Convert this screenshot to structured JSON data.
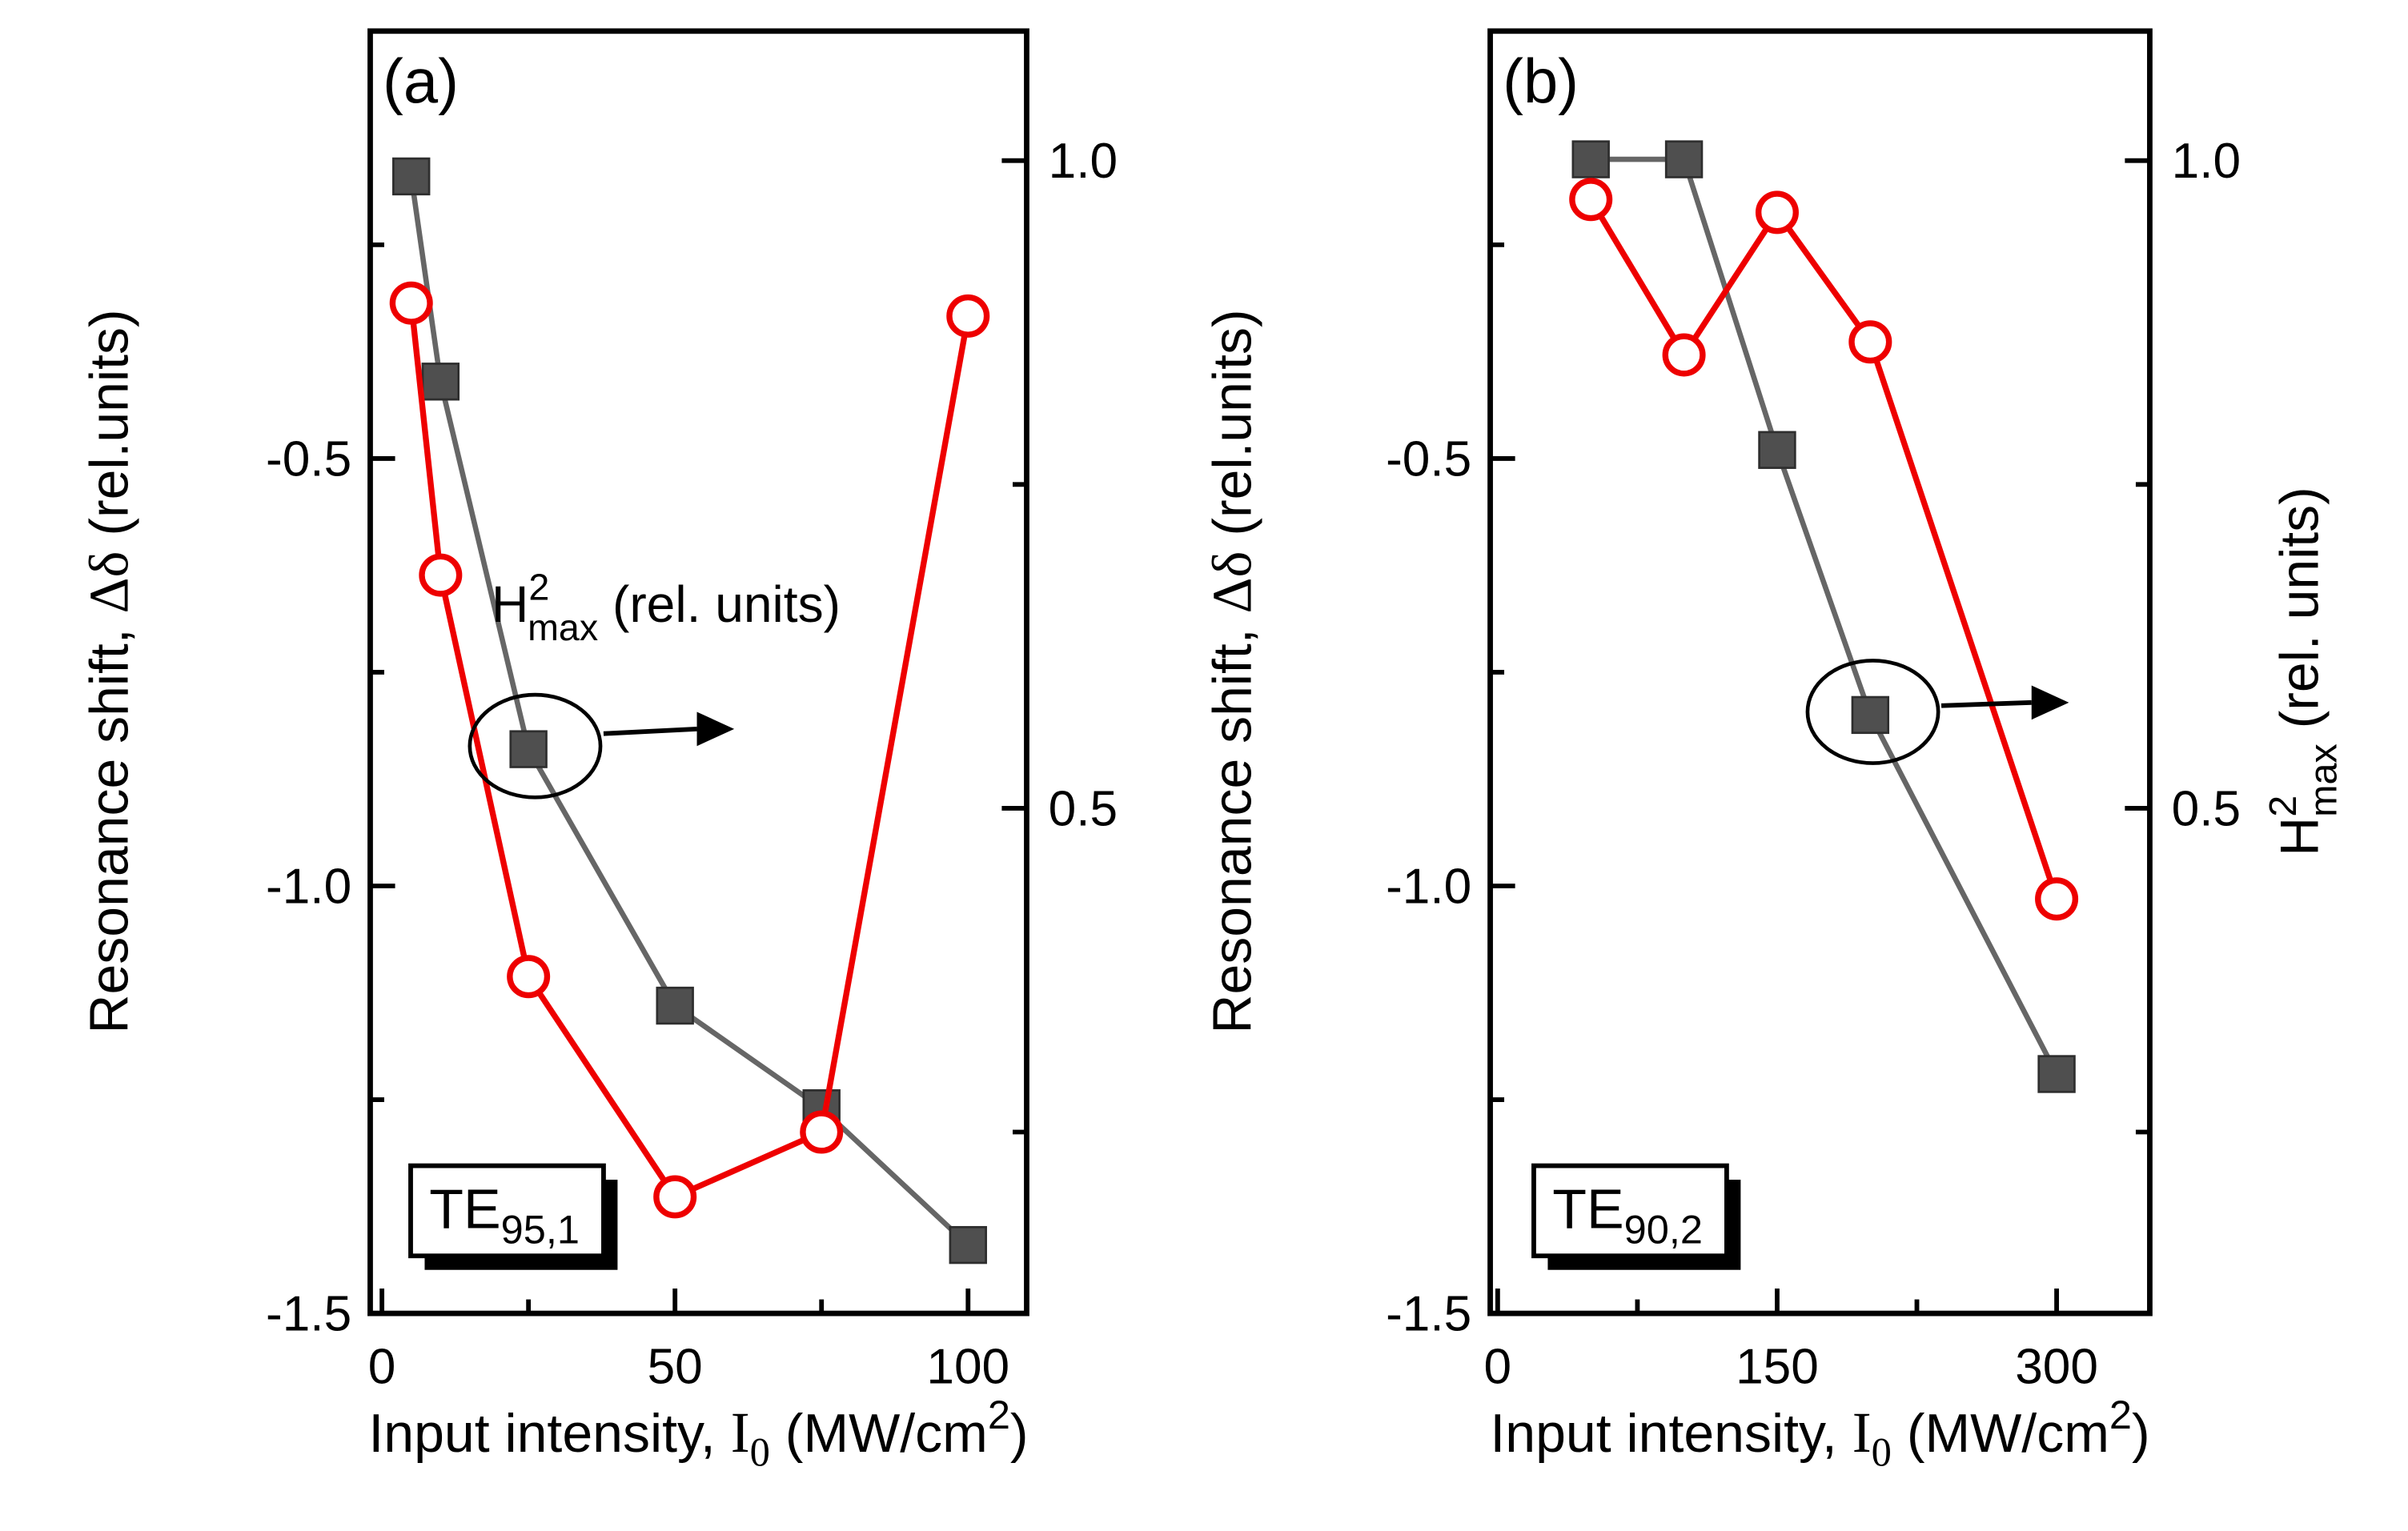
{
  "figure": {
    "background": "#ffffff",
    "colors": {
      "frame": "#000000",
      "squares_line": "#666666",
      "squares_fill": "#4f4f4f",
      "squares_edge": "#2e2e2e",
      "circles_stroke": "#ee0000",
      "circles_fill": "#ffffff",
      "annotation": "#000000"
    }
  },
  "chart_data": [
    {
      "type": "line",
      "panel_tag": "(a)",
      "legend": {
        "prefix": "TE",
        "subscript": "95,1"
      },
      "xlabel": {
        "pre": "Input intensity, ",
        "var": "I",
        "sub": "0",
        "mid": " (MW/cm",
        "sup": "2",
        "post": ")"
      },
      "ylabel_left": {
        "pre": "Resonance shift, ",
        "sym": "Δδ",
        "post": " (rel.units)"
      },
      "annotation": {
        "h": "H",
        "sup": "2",
        "sub": "max",
        "rest": " (rel. units)"
      },
      "xlim": [
        -2,
        110
      ],
      "xticks": [
        0,
        50,
        100
      ],
      "xtick_labels": [
        "0",
        "50",
        "100"
      ],
      "xticks_minor": [
        25,
        75
      ],
      "ylim_left": [
        -1.5,
        0
      ],
      "yticks_left": [
        -0.5,
        -1.0,
        -1.5
      ],
      "ytick_left_labels": [
        "-0.5",
        "-1.0",
        "-1.5"
      ],
      "yticks_left_minor": [
        -0.25,
        -0.75,
        -1.25
      ],
      "ylim_right": [
        0.11,
        1.1
      ],
      "yticks_right": [
        1.0,
        0.5
      ],
      "ytick_right_labels": [
        "1.0",
        "0.5"
      ],
      "yticks_right_minor": [
        0.75,
        0.25
      ],
      "series": [
        {
          "name": "resonance-shift",
          "axis": "left",
          "marker": "square",
          "x": [
            5,
            10,
            25,
            50,
            75,
            100
          ],
          "y": [
            -0.17,
            -0.41,
            -0.84,
            -1.14,
            -1.26,
            -1.42
          ]
        },
        {
          "name": "h2max",
          "axis": "right",
          "marker": "circle",
          "x": [
            5,
            10,
            25,
            50,
            75,
            100
          ],
          "y": [
            0.89,
            0.68,
            0.37,
            0.2,
            0.25,
            0.88
          ]
        }
      ]
    },
    {
      "type": "line",
      "panel_tag": "(b)",
      "legend": {
        "prefix": "TE",
        "subscript": "90,2"
      },
      "xlabel": {
        "pre": "Input intensity, ",
        "var": "I",
        "sub": "0",
        "mid": " (MW/cm",
        "sup": "2",
        "post": ")"
      },
      "ylabel_left": {
        "pre": "Resonance shift, ",
        "sym": "Δδ",
        "post": " (rel.units)"
      },
      "ylabel_right": {
        "h": "H",
        "sup": "2",
        "sub": "max",
        "rest": " (rel. units)"
      },
      "xlim": [
        -4,
        350
      ],
      "xticks": [
        0,
        150,
        300
      ],
      "xtick_labels": [
        "0",
        "150",
        "300"
      ],
      "xticks_minor": [
        75,
        225
      ],
      "ylim_left": [
        -1.5,
        0
      ],
      "yticks_left": [
        -0.5,
        -1.0,
        -1.5
      ],
      "ytick_left_labels": [
        "-0.5",
        "-1.0",
        "-1.5"
      ],
      "yticks_left_minor": [
        -0.25,
        -0.75,
        -1.25
      ],
      "ylim_right": [
        0.11,
        1.1
      ],
      "yticks_right": [
        1.0,
        0.5
      ],
      "ytick_right_labels": [
        "1.0",
        "0.5"
      ],
      "yticks_right_minor": [
        0.75,
        0.25
      ],
      "series": [
        {
          "name": "resonance-shift",
          "axis": "left",
          "marker": "square",
          "x": [
            50,
            100,
            150,
            200,
            300
          ],
          "y": [
            -0.15,
            -0.15,
            -0.49,
            -0.8,
            -1.22
          ]
        },
        {
          "name": "h2max",
          "axis": "right",
          "marker": "circle",
          "x": [
            50,
            100,
            150,
            200,
            300
          ],
          "y": [
            0.97,
            0.85,
            0.96,
            0.86,
            0.43
          ]
        }
      ]
    }
  ]
}
